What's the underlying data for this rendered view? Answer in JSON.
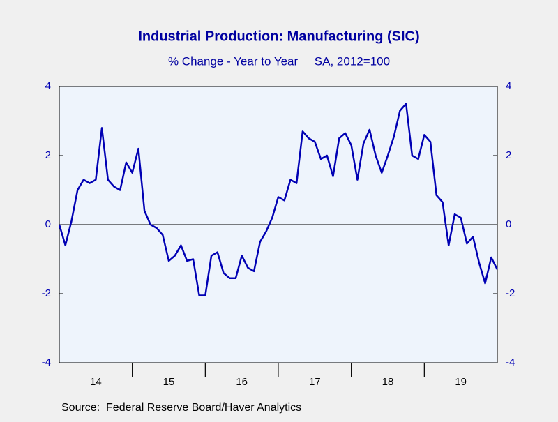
{
  "chart_data": {
    "type": "line",
    "title": "Industrial Production: Manufacturing (SIC)",
    "subtitle": "% Change - Year to Year     SA, 2012=100",
    "source": "Source:  Federal Reserve Board/Haver Analytics",
    "categories": [
      null,
      null,
      null,
      null,
      null,
      null,
      "14",
      null,
      null,
      null,
      null,
      null,
      null,
      null,
      null,
      null,
      null,
      null,
      "15",
      null,
      null,
      null,
      null,
      null,
      null,
      null,
      null,
      null,
      null,
      null,
      "16",
      null,
      null,
      null,
      null,
      null,
      null,
      null,
      null,
      null,
      null,
      null,
      "17",
      null,
      null,
      null,
      null,
      null,
      null,
      null,
      null,
      null,
      null,
      null,
      "18",
      null,
      null,
      null,
      null,
      null,
      null,
      null,
      null,
      null,
      null,
      null,
      "19",
      null,
      null,
      null,
      null,
      null,
      null
    ],
    "series": [
      {
        "name": "Manufacturing",
        "color": "#0000b4",
        "values": [
          0,
          -0.6,
          0.1,
          1.0,
          1.3,
          1.2,
          1.3,
          2.8,
          1.3,
          1.1,
          1.0,
          1.8,
          1.5,
          2.2,
          0.4,
          0.0,
          -0.1,
          -0.3,
          -1.05,
          -0.9,
          -0.6,
          -1.05,
          -1.0,
          -2.05,
          -2.05,
          -0.9,
          -0.8,
          -1.4,
          -1.55,
          -1.55,
          -0.9,
          -1.25,
          -1.35,
          -0.5,
          -0.2,
          0.2,
          0.8,
          0.7,
          1.3,
          1.2,
          2.7,
          2.5,
          2.4,
          1.9,
          2.0,
          1.4,
          2.5,
          2.65,
          2.3,
          1.3,
          2.35,
          2.75,
          2.0,
          1.5,
          2.0,
          2.55,
          3.3,
          3.5,
          2.0,
          1.9,
          2.6,
          2.4,
          0.85,
          0.65,
          -0.6,
          0.3,
          0.2,
          -0.55,
          -0.35,
          -1.1,
          -1.7,
          -0.95,
          -1.3
        ]
      }
    ],
    "ylim": [
      -4,
      4
    ],
    "yticks": [
      -4,
      -2,
      0,
      2,
      4
    ],
    "y2lim": [
      -4,
      4
    ],
    "y2ticks": [
      -4,
      -2,
      0,
      2,
      4
    ],
    "grid": false
  }
}
